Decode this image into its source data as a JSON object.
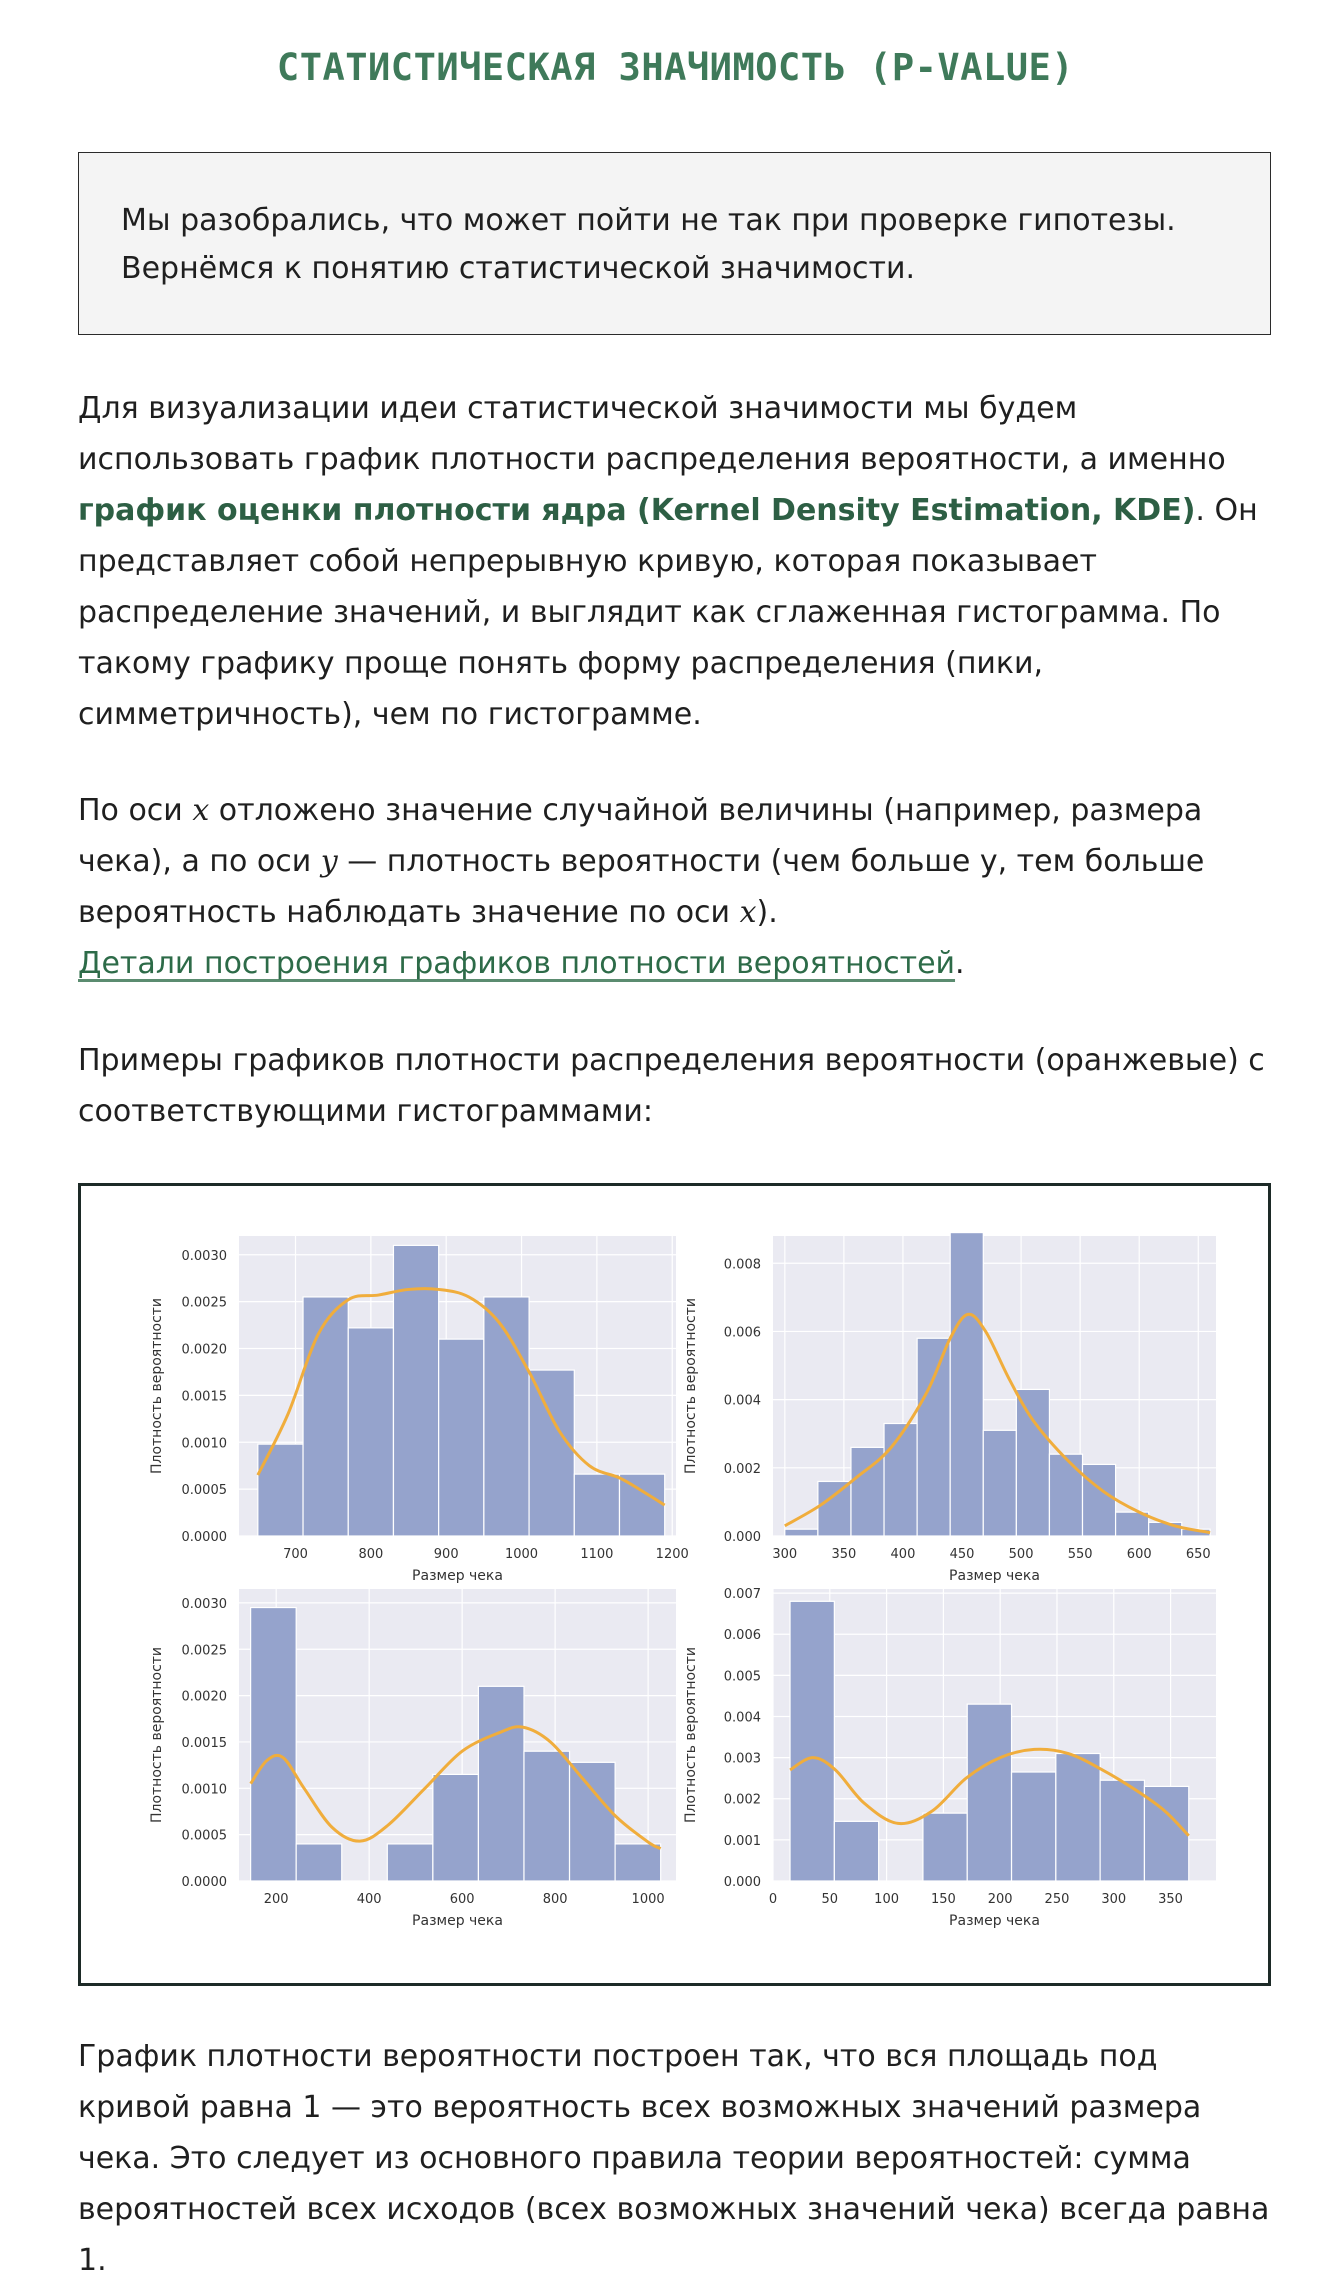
{
  "title": "СТАТИСТИЧЕСКАЯ ЗНАЧИМОСТЬ (P-VALUE)",
  "note": {
    "line1": "Мы разобрались, что может пойти не так при проверке гипотезы.",
    "line2": "Вернёмся к понятию статистической значимости."
  },
  "para1": {
    "text_a": "Для визуализации идеи статистической значимости мы будем использовать график плотности распределения вероятности, а именно ",
    "highlight": "график оценки плотности ядра (Kernel Density Estimation, KDE)",
    "text_b": ". Он представляет собой непрерывную кривую, которая показывает распределение значений, и выглядит как сглаженная гистограмма. По такому графику проще понять форму распределения (пики, симметричность), чем по гистограмме."
  },
  "para2": {
    "t1": "По оси ",
    "var_x": "x",
    "t2": " отложено значение случайной величины (например, размера чека), а по оси ",
    "var_y": "y",
    "t3": " — плотность вероятности (чем больше y, тем больше вероятность наблюдать значение по оси ",
    "var_x2": "x",
    "t4": ").",
    "link": "Детали построения графиков плотности вероятностей",
    "t5": "."
  },
  "para3": "Примеры графиков плотности распределения вероятности (оранжевые) с соответствующими гистограммами:",
  "para4": "График плотности вероятности построен так, что вся площадь под кривой равна 1 — это вероятность всех возможных значений размера чека. Это следует из основного правила теории вероятностей: сумма вероятностей всех исходов (всех возможных значений чека) всегда равна 1.",
  "colors": {
    "title": "#3f7a5a",
    "highlight": "#2d5f44",
    "bar": "#95a3cc",
    "kde": "#f0ad3c",
    "plot_bg": "#eaeaf2"
  },
  "chart_data": [
    {
      "type": "bar",
      "xlabel": "Размер чека",
      "ylabel": "Плотность вероятности",
      "xlim": [
        625,
        1205
      ],
      "ylim": [
        0,
        0.0032
      ],
      "xticks": [
        700,
        800,
        900,
        1000,
        1100,
        1200
      ],
      "xtick_labels": [
        "700",
        "800",
        "900",
        "1000",
        "1100",
        "1200"
      ],
      "yticks": [
        0,
        0.0005,
        0.001,
        0.0015,
        0.002,
        0.0025,
        0.003
      ],
      "ytick_labels": [
        "0.0000",
        "0.0005",
        "0.0010",
        "0.0015",
        "0.0020",
        "0.0025",
        "0.0030"
      ],
      "bins": [
        [
          650,
          710,
          0.00098
        ],
        [
          710,
          770,
          0.00255
        ],
        [
          770,
          830,
          0.00222
        ],
        [
          830,
          890,
          0.0031
        ],
        [
          890,
          950,
          0.0021
        ],
        [
          950,
          1010,
          0.00255
        ],
        [
          1010,
          1070,
          0.00177
        ],
        [
          1070,
          1130,
          0.00066
        ],
        [
          1130,
          1190,
          0.00066
        ]
      ],
      "kde": [
        [
          650,
          0.00065
        ],
        [
          690,
          0.0013
        ],
        [
          730,
          0.00215
        ],
        [
          770,
          0.00252
        ],
        [
          810,
          0.00257
        ],
        [
          850,
          0.00263
        ],
        [
          890,
          0.00263
        ],
        [
          930,
          0.00255
        ],
        [
          970,
          0.00228
        ],
        [
          1010,
          0.00175
        ],
        [
          1050,
          0.00112
        ],
        [
          1090,
          0.00075
        ],
        [
          1130,
          0.00062
        ],
        [
          1160,
          0.00048
        ],
        [
          1190,
          0.00033
        ]
      ]
    },
    {
      "type": "bar",
      "xlabel": "Размер чека",
      "ylabel": "Плотность вероятности",
      "xlim": [
        290,
        665
      ],
      "ylim": [
        0,
        0.0088
      ],
      "xticks": [
        300,
        350,
        400,
        450,
        500,
        550,
        600,
        650
      ],
      "xtick_labels": [
        "300",
        "350",
        "400",
        "450",
        "500",
        "550",
        "600",
        "650"
      ],
      "yticks": [
        0,
        0.002,
        0.004,
        0.006,
        0.008
      ],
      "ytick_labels": [
        "0.000",
        "0.002",
        "0.004",
        "0.006",
        "0.008"
      ],
      "bins": [
        [
          300,
          328,
          0.0002
        ],
        [
          328,
          356,
          0.0016
        ],
        [
          356,
          384,
          0.0026
        ],
        [
          384,
          412,
          0.0033
        ],
        [
          412,
          440,
          0.0058
        ],
        [
          440,
          468,
          0.0089
        ],
        [
          468,
          496,
          0.0031
        ],
        [
          496,
          524,
          0.0043
        ],
        [
          524,
          552,
          0.0024
        ],
        [
          552,
          580,
          0.0021
        ],
        [
          580,
          608,
          0.0007
        ],
        [
          608,
          636,
          0.0004
        ],
        [
          636,
          660,
          0.0002
        ]
      ],
      "kde": [
        [
          300,
          0.0003
        ],
        [
          330,
          0.0009
        ],
        [
          360,
          0.0017
        ],
        [
          390,
          0.0026
        ],
        [
          420,
          0.0042
        ],
        [
          440,
          0.0058
        ],
        [
          455,
          0.0065
        ],
        [
          470,
          0.006
        ],
        [
          490,
          0.0046
        ],
        [
          510,
          0.0034
        ],
        [
          540,
          0.0022
        ],
        [
          570,
          0.0013
        ],
        [
          600,
          0.0007
        ],
        [
          630,
          0.0003
        ],
        [
          660,
          0.0001
        ]
      ]
    },
    {
      "type": "bar",
      "xlabel": "Размер чека",
      "ylabel": "Плотность вероятности",
      "xlim": [
        120,
        1060
      ],
      "ylim": [
        0,
        0.00315
      ],
      "xticks": [
        200,
        400,
        600,
        800,
        1000
      ],
      "xtick_labels": [
        "200",
        "400",
        "600",
        "800",
        "1000"
      ],
      "yticks": [
        0,
        0.0005,
        0.001,
        0.0015,
        0.002,
        0.0025,
        0.003
      ],
      "ytick_labels": [
        "0.0000",
        "0.0005",
        "0.0010",
        "0.0015",
        "0.0020",
        "0.0025",
        "0.0030"
      ],
      "bins": [
        [
          145,
          243,
          0.00295
        ],
        [
          243,
          341,
          0.0004
        ],
        [
          341,
          439,
          0
        ],
        [
          439,
          537,
          0.0004
        ],
        [
          537,
          635,
          0.00115
        ],
        [
          635,
          733,
          0.0021
        ],
        [
          733,
          831,
          0.0014
        ],
        [
          831,
          929,
          0.00128
        ],
        [
          929,
          1027,
          0.0004
        ]
      ],
      "kde": [
        [
          145,
          0.00105
        ],
        [
          180,
          0.0013
        ],
        [
          215,
          0.00133
        ],
        [
          260,
          0.001
        ],
        [
          320,
          0.00058
        ],
        [
          380,
          0.00043
        ],
        [
          440,
          0.0006
        ],
        [
          520,
          0.001
        ],
        [
          600,
          0.0014
        ],
        [
          680,
          0.0016
        ],
        [
          730,
          0.00166
        ],
        [
          790,
          0.0015
        ],
        [
          860,
          0.0011
        ],
        [
          930,
          0.0007
        ],
        [
          1000,
          0.00042
        ],
        [
          1027,
          0.00035
        ]
      ]
    },
    {
      "type": "bar",
      "xlabel": "Размер чека",
      "ylabel": "Плотность вероятности",
      "xlim": [
        0,
        390
      ],
      "ylim": [
        0,
        0.0071
      ],
      "xticks": [
        0,
        50,
        100,
        150,
        200,
        250,
        300,
        350
      ],
      "xtick_labels": [
        "0",
        "50",
        "100",
        "150",
        "200",
        "250",
        "300",
        "350"
      ],
      "yticks": [
        0,
        0.001,
        0.002,
        0.003,
        0.004,
        0.005,
        0.006,
        0.007
      ],
      "ytick_labels": [
        "0.000",
        "0.001",
        "0.002",
        "0.003",
        "0.004",
        "0.005",
        "0.006",
        "0.007"
      ],
      "bins": [
        [
          15,
          54,
          0.0068
        ],
        [
          54,
          93,
          0.00145
        ],
        [
          93,
          132,
          0
        ],
        [
          132,
          171,
          0.00165
        ],
        [
          171,
          210,
          0.0043
        ],
        [
          210,
          249,
          0.00265
        ],
        [
          249,
          288,
          0.0031
        ],
        [
          288,
          327,
          0.00245
        ],
        [
          327,
          366,
          0.0023
        ]
      ],
      "kde": [
        [
          15,
          0.0027
        ],
        [
          35,
          0.003
        ],
        [
          55,
          0.0027
        ],
        [
          80,
          0.0019
        ],
        [
          110,
          0.0014
        ],
        [
          140,
          0.0017
        ],
        [
          170,
          0.0025
        ],
        [
          200,
          0.003
        ],
        [
          230,
          0.0032
        ],
        [
          260,
          0.0031
        ],
        [
          290,
          0.0027
        ],
        [
          320,
          0.0022
        ],
        [
          345,
          0.0017
        ],
        [
          366,
          0.0011
        ]
      ]
    }
  ]
}
